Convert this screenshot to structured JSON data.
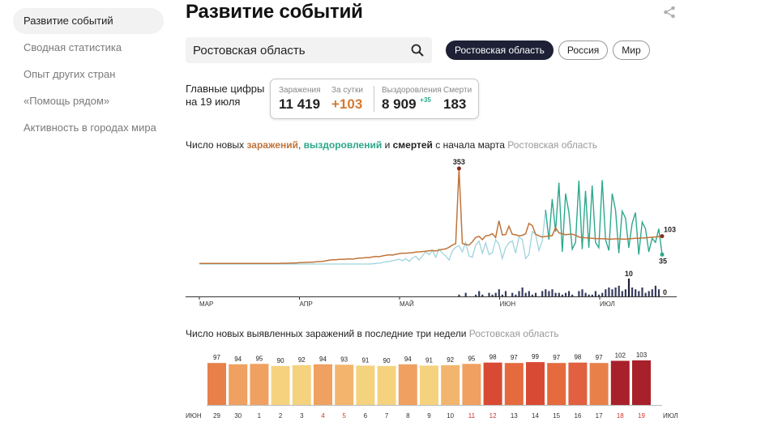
{
  "sidebar": {
    "items": [
      {
        "label": "Развитие событий",
        "active": true
      },
      {
        "label": "Сводная статистика",
        "active": false
      },
      {
        "label": "Опыт других стран",
        "active": false
      },
      {
        "label": "«Помощь рядом»",
        "active": false
      },
      {
        "label": "Активность в городах мира",
        "active": false
      }
    ]
  },
  "header": {
    "title": "Развитие событий",
    "share_icon": "share-icon"
  },
  "search": {
    "value": "Ростовская область",
    "icon": "search-icon"
  },
  "region_chips": [
    {
      "label": "Ростовская область",
      "active": true
    },
    {
      "label": "Россия",
      "active": false
    },
    {
      "label": "Мир",
      "active": false
    }
  ],
  "key_figures": {
    "label_line1": "Главные цифры",
    "label_line2": "на 19 июля",
    "infections_label": "Заражения",
    "infections_value": "11 419",
    "per_day_label": "За сутки",
    "per_day_value": "+103",
    "recovered_label": "Выздоровления",
    "recovered_value": "8 909",
    "recovered_delta": "+35",
    "deaths_label": "Смерти",
    "deaths_value": "183"
  },
  "chart1_title": {
    "prefix": "Число новых ",
    "infections": "заражений",
    "sep": ", ",
    "recoveries": "выздоровлений",
    "and": " и ",
    "deaths": "смертей",
    "suffix": " с начала марта",
    "region": "Ростовская область"
  },
  "chart2_title": {
    "text": "Число новых выявленных заражений в последние три недели",
    "region": "Ростовская область"
  },
  "colors": {
    "infections": "#c0743a",
    "recoveries": "#2aa88a",
    "recoveries_light": "#9fd3de",
    "deaths": "#353b5c",
    "peak": "#8b2a1e",
    "weekend_label": "#d0342c"
  },
  "chart_data": [
    {
      "type": "line",
      "x_ticks": [
        "МАР",
        "АПР",
        "МАЙ",
        "ИЮН",
        "ИЮЛ"
      ],
      "series": [
        {
          "name": "заражений",
          "values": [
            2,
            2,
            2,
            2,
            2,
            2,
            2,
            2,
            2,
            2,
            2,
            2,
            2,
            2,
            2,
            2,
            2,
            2,
            2,
            2,
            2,
            2,
            2,
            2,
            2,
            3,
            3,
            3,
            4,
            4,
            5,
            5,
            6,
            7,
            7,
            8,
            9,
            10,
            12,
            14,
            16,
            16,
            17,
            17,
            18,
            19,
            18,
            20,
            22,
            22,
            24,
            24,
            26,
            28,
            27,
            30,
            32,
            34,
            33,
            36,
            38,
            40,
            40,
            41,
            42,
            44,
            45,
            46,
            47,
            49,
            50,
            48,
            52,
            54,
            56,
            62,
            70,
            75,
            353,
            76,
            72,
            70,
            82,
            98,
            102,
            90,
            104,
            106,
            112,
            98,
            160,
            108,
            109,
            140,
            110,
            108,
            104,
            106,
            112,
            150,
            142,
            110,
            104,
            100,
            102,
            103,
            105,
            135,
            115,
            112,
            108,
            110,
            110,
            106,
            100,
            98,
            97,
            96,
            95,
            94,
            94,
            93,
            93,
            92,
            92,
            93,
            93,
            92,
            92,
            93,
            94,
            95,
            95,
            96,
            97,
            98,
            99,
            100,
            101,
            103
          ]
        },
        {
          "name": "выздоровлений",
          "values": [
            0,
            0,
            0,
            0,
            0,
            0,
            0,
            0,
            0,
            0,
            0,
            0,
            0,
            0,
            0,
            0,
            0,
            0,
            0,
            0,
            0,
            0,
            0,
            0,
            0,
            0,
            0,
            0,
            0,
            0,
            0,
            0,
            0,
            0,
            0,
            0,
            0,
            0,
            0,
            0,
            0,
            0,
            0,
            0,
            0,
            0,
            0,
            0,
            0,
            0,
            0,
            0,
            1,
            2,
            3,
            5,
            8,
            10,
            12,
            15,
            18,
            12,
            20,
            10,
            22,
            28,
            15,
            30,
            45,
            35,
            50,
            25,
            55,
            40,
            30,
            15,
            48,
            62,
            68,
            45,
            80,
            30,
            25,
            70,
            85,
            40,
            78,
            35,
            42,
            90,
            72,
            20,
            60,
            78,
            85,
            40,
            100,
            90,
            20,
            35,
            120,
            110,
            50,
            85,
            200,
            90,
            240,
            120,
            300,
            45,
            260,
            190,
            55,
            80,
            308,
            55,
            270,
            60,
            290,
            80,
            60,
            310,
            90,
            50,
            260,
            200,
            40,
            195,
            170,
            60,
            150,
            190,
            35,
            155,
            130,
            45,
            95,
            80,
            130,
            35
          ]
        },
        {
          "name": "смертей",
          "values": [
            0,
            0,
            0,
            0,
            0,
            0,
            0,
            0,
            0,
            0,
            0,
            0,
            0,
            0,
            0,
            0,
            0,
            0,
            0,
            0,
            0,
            0,
            0,
            0,
            0,
            0,
            0,
            0,
            0,
            0,
            0,
            0,
            0,
            0,
            0,
            0,
            0,
            0,
            0,
            0,
            0,
            0,
            0,
            0,
            0,
            0,
            0,
            0,
            0,
            0,
            0,
            0,
            0,
            0,
            0,
            0,
            0,
            0,
            0,
            0,
            0,
            0,
            0,
            0,
            0,
            0,
            0,
            0,
            0,
            0,
            0,
            0,
            0,
            0,
            0,
            0,
            0,
            0,
            1,
            0,
            2,
            0,
            0,
            1,
            3,
            1,
            0,
            2,
            1,
            2,
            4,
            1,
            3,
            0,
            2,
            1,
            3,
            5,
            2,
            3,
            1,
            2,
            0,
            3,
            4,
            3,
            4,
            2,
            2,
            1,
            2,
            3,
            1,
            0,
            3,
            4,
            2,
            1,
            1,
            3,
            1,
            2,
            4,
            5,
            4,
            5,
            6,
            3,
            4,
            10,
            5,
            4,
            3,
            5,
            2,
            3,
            4,
            6,
            4,
            0
          ]
        }
      ],
      "annotations": [
        {
          "label": "353",
          "series": "заражений"
        },
        {
          "label": "103",
          "series": "заражений"
        },
        {
          "label": "35",
          "series": "выздоровлений"
        },
        {
          "label": "10",
          "series": "смертей"
        },
        {
          "label": "0",
          "series": "смертей"
        }
      ]
    },
    {
      "type": "bar",
      "month_start": "ИЮН",
      "month_end": "ИЮЛ",
      "categories": [
        "29",
        "30",
        "1",
        "2",
        "3",
        "4",
        "5",
        "6",
        "7",
        "8",
        "9",
        "10",
        "11",
        "12",
        "13",
        "14",
        "15",
        "16",
        "17",
        "18",
        "19"
      ],
      "weekend": [
        false,
        false,
        false,
        false,
        false,
        true,
        true,
        false,
        false,
        false,
        false,
        false,
        true,
        true,
        false,
        false,
        false,
        false,
        false,
        true,
        true
      ],
      "values": [
        97,
        94,
        95,
        90,
        92,
        94,
        93,
        91,
        90,
        94,
        91,
        92,
        95,
        98,
        97,
        99,
        97,
        98,
        97,
        102,
        103
      ],
      "bar_colors": [
        "#e8804a",
        "#f0a060",
        "#f0a060",
        "#f5d27e",
        "#f5d27e",
        "#f0a060",
        "#f3b56e",
        "#f5d27e",
        "#f5d27e",
        "#f0a060",
        "#f5d27e",
        "#f3b56e",
        "#f0a060",
        "#d94a34",
        "#e56a3e",
        "#d94a34",
        "#e56a3e",
        "#e06040",
        "#e8804a",
        "#a8202a",
        "#a8202a"
      ]
    }
  ]
}
